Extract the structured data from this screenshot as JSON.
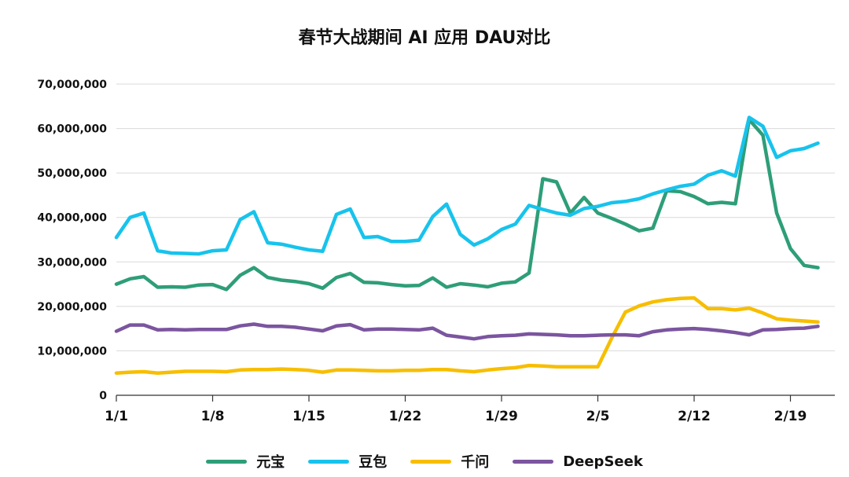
{
  "chart_data": {
    "type": "line",
    "title": "春节大战期间 AI 应用 DAU对比",
    "xlabel": "",
    "ylabel": "",
    "x_tick_labels": [
      "1/1",
      "1/8",
      "1/15",
      "1/22",
      "1/29",
      "2/5",
      "2/12",
      "2/19"
    ],
    "x_tick_index": [
      0,
      7,
      14,
      21,
      28,
      35,
      42,
      49
    ],
    "y_tick_labels": [
      "0",
      "10,000,000",
      "20,000,000",
      "30,000,000",
      "40,000,000",
      "50,000,000",
      "60,000,000",
      "70,000,000"
    ],
    "ylim": [
      0,
      70000000
    ],
    "grid": "horizontal",
    "legend_position": "bottom",
    "x": [
      "1/1",
      "1/2",
      "1/3",
      "1/4",
      "1/5",
      "1/6",
      "1/7",
      "1/8",
      "1/9",
      "1/10",
      "1/11",
      "1/12",
      "1/13",
      "1/14",
      "1/15",
      "1/16",
      "1/17",
      "1/18",
      "1/19",
      "1/20",
      "1/21",
      "1/22",
      "1/23",
      "1/24",
      "1/25",
      "1/26",
      "1/27",
      "1/28",
      "1/29",
      "1/30",
      "1/31",
      "2/1",
      "2/2",
      "2/3",
      "2/4",
      "2/5",
      "2/6",
      "2/7",
      "2/8",
      "2/9",
      "2/10",
      "2/11",
      "2/12",
      "2/13",
      "2/14",
      "2/15",
      "2/16",
      "2/17",
      "2/18",
      "2/19",
      "2/20",
      "2/21"
    ],
    "series": [
      {
        "name": "元宝",
        "color": "#2e9e78",
        "values": [
          25000000,
          26200000,
          26700000,
          24300000,
          24400000,
          24300000,
          24800000,
          24900000,
          23800000,
          27000000,
          28700000,
          26500000,
          25900000,
          25600000,
          25100000,
          24100000,
          26500000,
          27400000,
          25400000,
          25300000,
          24900000,
          24600000,
          24700000,
          26400000,
          24300000,
          25100000,
          24800000,
          24400000,
          25200000,
          25500000,
          27500000,
          48700000,
          48000000,
          41000000,
          44500000,
          41000000,
          39800000,
          38500000,
          37000000,
          37600000,
          46000000,
          45800000,
          44700000,
          43100000,
          43400000,
          43100000,
          62000000,
          58500000,
          41000000,
          33000000,
          29200000,
          28700000
        ]
      },
      {
        "name": "豆包",
        "color": "#17c3ec",
        "values": [
          35500000,
          40000000,
          41000000,
          32500000,
          32000000,
          31900000,
          31800000,
          32500000,
          32700000,
          39500000,
          41300000,
          34300000,
          34000000,
          33300000,
          32700000,
          32400000,
          40700000,
          41900000,
          35500000,
          35700000,
          34600000,
          34600000,
          34900000,
          40200000,
          43000000,
          36200000,
          33800000,
          35200000,
          37300000,
          38500000,
          42700000,
          41800000,
          41000000,
          40500000,
          42000000,
          42500000,
          43300000,
          43600000,
          44200000,
          45300000,
          46200000,
          47000000,
          47500000,
          49500000,
          50500000,
          49300000,
          62500000,
          60500000,
          53500000,
          55000000,
          55500000,
          56700000
        ]
      },
      {
        "name": "千问",
        "color": "#f7be00",
        "values": [
          5000000,
          5200000,
          5300000,
          5000000,
          5200000,
          5400000,
          5400000,
          5400000,
          5300000,
          5700000,
          5800000,
          5800000,
          5900000,
          5800000,
          5600000,
          5200000,
          5700000,
          5700000,
          5600000,
          5500000,
          5500000,
          5600000,
          5600000,
          5800000,
          5800000,
          5500000,
          5300000,
          5700000,
          6000000,
          6200000,
          6700000,
          6600000,
          6400000,
          6400000,
          6400000,
          6400000,
          12800000,
          18700000,
          20100000,
          21000000,
          21500000,
          21800000,
          21900000,
          19500000,
          19500000,
          19200000,
          19600000,
          18500000,
          17200000,
          16900000,
          16700000,
          16500000
        ]
      },
      {
        "name": "DeepSeek",
        "color": "#7b559f",
        "values": [
          14400000,
          15800000,
          15800000,
          14700000,
          14800000,
          14700000,
          14800000,
          14800000,
          14800000,
          15600000,
          16000000,
          15500000,
          15500000,
          15300000,
          14900000,
          14500000,
          15600000,
          15900000,
          14700000,
          14900000,
          14900000,
          14800000,
          14700000,
          15100000,
          13500000,
          13100000,
          12700000,
          13200000,
          13400000,
          13500000,
          13800000,
          13700000,
          13600000,
          13400000,
          13400000,
          13500000,
          13600000,
          13600000,
          13400000,
          14300000,
          14700000,
          14900000,
          15000000,
          14800000,
          14500000,
          14100000,
          13600000,
          14700000,
          14800000,
          15000000,
          15100000,
          15500000
        ]
      }
    ]
  }
}
